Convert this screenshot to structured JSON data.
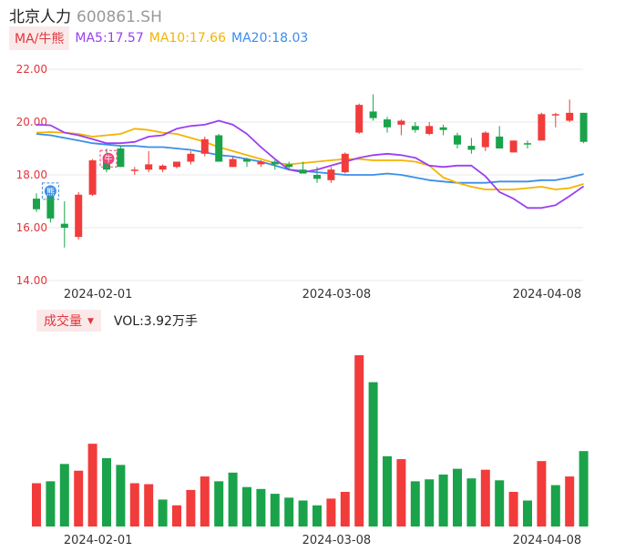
{
  "header": {
    "name": "北京人力",
    "code": "600861.SH"
  },
  "legend": {
    "tag": "MA/牛熊",
    "items": [
      {
        "label": "MA5:17.57",
        "color": "#9b3ff0"
      },
      {
        "label": "MA10:17.66",
        "color": "#f4b400"
      },
      {
        "label": "MA20:18.03",
        "color": "#3b8ee8"
      }
    ]
  },
  "volume_legend": {
    "tag": "成交量",
    "text": "VOL:3.92万手"
  },
  "colors": {
    "up": "#f23b3b",
    "down": "#1aa34a",
    "ma5": "#9b3ff0",
    "ma10": "#f4b400",
    "ma20": "#3b8ee8",
    "ytick_top": "#e2343a",
    "ytick_bottom": "#1aa34a"
  },
  "chart_data": [
    {
      "type": "candlestick",
      "ylim": [
        14.0,
        22.0
      ],
      "yticks": [
        "22.00",
        "20.00",
        "18.00",
        "16.00",
        "14.00"
      ],
      "xticks": [
        {
          "label": "2024-02-01",
          "index": 4
        },
        {
          "label": "2024-03-08",
          "index": 21
        },
        {
          "label": "2024-04-08",
          "index": 36
        }
      ],
      "markers": [
        {
          "index": 1,
          "label": "熊"
        },
        {
          "index": 5,
          "label": "牛"
        }
      ],
      "candles": [
        {
          "o": 17.1,
          "h": 17.3,
          "l": 16.6,
          "c": 16.7
        },
        {
          "o": 17.2,
          "h": 17.4,
          "l": 16.2,
          "c": 16.35
        },
        {
          "o": 16.15,
          "h": 17.0,
          "l": 15.25,
          "c": 16.0
        },
        {
          "o": 15.65,
          "h": 17.35,
          "l": 15.55,
          "c": 17.25
        },
        {
          "o": 17.25,
          "h": 18.6,
          "l": 17.2,
          "c": 18.55
        },
        {
          "o": 18.55,
          "h": 19.0,
          "l": 18.1,
          "c": 18.2
        },
        {
          "o": 19.0,
          "h": 19.1,
          "l": 18.3,
          "c": 18.3
        },
        {
          "o": 18.15,
          "h": 18.3,
          "l": 18.0,
          "c": 18.2
        },
        {
          "o": 18.2,
          "h": 18.9,
          "l": 18.1,
          "c": 18.4
        },
        {
          "o": 18.2,
          "h": 18.4,
          "l": 18.1,
          "c": 18.35
        },
        {
          "o": 18.3,
          "h": 18.5,
          "l": 18.25,
          "c": 18.5
        },
        {
          "o": 18.5,
          "h": 18.9,
          "l": 18.4,
          "c": 18.8
        },
        {
          "o": 18.8,
          "h": 19.45,
          "l": 18.7,
          "c": 19.35
        },
        {
          "o": 19.5,
          "h": 19.55,
          "l": 18.5,
          "c": 18.5
        },
        {
          "o": 18.3,
          "h": 18.7,
          "l": 18.3,
          "c": 18.6
        },
        {
          "o": 18.6,
          "h": 18.65,
          "l": 18.3,
          "c": 18.5
        },
        {
          "o": 18.4,
          "h": 18.55,
          "l": 18.3,
          "c": 18.5
        },
        {
          "o": 18.5,
          "h": 18.55,
          "l": 18.2,
          "c": 18.4
        },
        {
          "o": 18.4,
          "h": 18.5,
          "l": 18.2,
          "c": 18.3
        },
        {
          "o": 18.2,
          "h": 18.5,
          "l": 18.1,
          "c": 18.05
        },
        {
          "o": 18.0,
          "h": 18.3,
          "l": 17.7,
          "c": 17.85
        },
        {
          "o": 17.8,
          "h": 18.3,
          "l": 17.7,
          "c": 18.2
        },
        {
          "o": 18.1,
          "h": 18.85,
          "l": 18.05,
          "c": 18.8
        },
        {
          "o": 19.6,
          "h": 20.7,
          "l": 19.55,
          "c": 20.65
        },
        {
          "o": 20.4,
          "h": 21.05,
          "l": 20.05,
          "c": 20.15
        },
        {
          "o": 20.1,
          "h": 20.2,
          "l": 19.6,
          "c": 19.8
        },
        {
          "o": 19.9,
          "h": 20.1,
          "l": 19.5,
          "c": 20.05
        },
        {
          "o": 19.85,
          "h": 20.0,
          "l": 19.6,
          "c": 19.7
        },
        {
          "o": 19.55,
          "h": 20.0,
          "l": 19.5,
          "c": 19.85
        },
        {
          "o": 19.8,
          "h": 19.9,
          "l": 19.5,
          "c": 19.7
        },
        {
          "o": 19.5,
          "h": 19.6,
          "l": 19.0,
          "c": 19.15
        },
        {
          "o": 19.1,
          "h": 19.4,
          "l": 18.8,
          "c": 18.95
        },
        {
          "o": 19.05,
          "h": 19.65,
          "l": 18.9,
          "c": 19.6
        },
        {
          "o": 19.45,
          "h": 19.85,
          "l": 19.0,
          "c": 19.0
        },
        {
          "o": 18.85,
          "h": 19.3,
          "l": 18.85,
          "c": 19.3
        },
        {
          "o": 19.2,
          "h": 19.3,
          "l": 19.0,
          "c": 19.15
        },
        {
          "o": 19.3,
          "h": 20.35,
          "l": 19.3,
          "c": 20.3
        },
        {
          "o": 20.25,
          "h": 20.35,
          "l": 19.8,
          "c": 20.3
        },
        {
          "o": 20.05,
          "h": 20.85,
          "l": 20.0,
          "c": 20.35
        },
        {
          "o": 20.35,
          "h": 20.35,
          "l": 19.2,
          "c": 19.25
        }
      ],
      "ma5": [
        19.9,
        19.88,
        19.6,
        19.5,
        19.35,
        19.2,
        19.2,
        19.25,
        19.45,
        19.5,
        19.75,
        19.85,
        19.9,
        20.05,
        19.9,
        19.55,
        19.05,
        18.6,
        18.2,
        18.1,
        18.2,
        18.35,
        18.5,
        18.65,
        18.75,
        18.8,
        18.75,
        18.65,
        18.35,
        18.3,
        18.35,
        18.35,
        17.95,
        17.35,
        17.1,
        16.75,
        16.75,
        16.85,
        17.2,
        17.57
      ],
      "ma10": [
        19.6,
        19.62,
        19.6,
        19.55,
        19.45,
        19.5,
        19.55,
        19.75,
        19.7,
        19.6,
        19.55,
        19.4,
        19.25,
        19.05,
        18.9,
        18.75,
        18.6,
        18.45,
        18.4,
        18.45,
        18.5,
        18.55,
        18.6,
        18.6,
        18.55,
        18.55,
        18.55,
        18.5,
        18.35,
        17.9,
        17.7,
        17.55,
        17.45,
        17.45,
        17.45,
        17.5,
        17.55,
        17.45,
        17.5,
        17.66
      ],
      "ma20": [
        19.55,
        19.5,
        19.4,
        19.3,
        19.2,
        19.15,
        19.1,
        19.1,
        19.05,
        19.05,
        19.0,
        18.95,
        18.85,
        18.75,
        18.7,
        18.6,
        18.5,
        18.35,
        18.2,
        18.15,
        18.1,
        18.05,
        18.0,
        18.0,
        18.0,
        18.05,
        18.0,
        17.9,
        17.8,
        17.75,
        17.7,
        17.7,
        17.7,
        17.75,
        17.75,
        17.75,
        17.8,
        17.8,
        17.9,
        18.03
      ]
    },
    {
      "type": "bar",
      "name": "成交量",
      "values": [
        2.25,
        2.35,
        3.25,
        2.9,
        4.3,
        3.55,
        3.2,
        2.25,
        2.2,
        1.4,
        1.1,
        1.9,
        2.6,
        2.35,
        2.8,
        2.05,
        1.95,
        1.7,
        1.5,
        1.35,
        1.1,
        1.45,
        1.8,
        8.9,
        7.5,
        3.65,
        3.5,
        2.35,
        2.45,
        2.7,
        3.0,
        2.5,
        2.95,
        2.4,
        1.8,
        1.35,
        3.4,
        2.15,
        2.6,
        3.92
      ],
      "up": [
        true,
        false,
        false,
        true,
        true,
        false,
        false,
        true,
        true,
        false,
        true,
        true,
        true,
        false,
        false,
        false,
        false,
        false,
        false,
        false,
        false,
        true,
        true,
        true,
        false,
        false,
        true,
        false,
        false,
        false,
        false,
        false,
        true,
        false,
        true,
        false,
        true,
        false,
        true,
        false
      ]
    }
  ]
}
